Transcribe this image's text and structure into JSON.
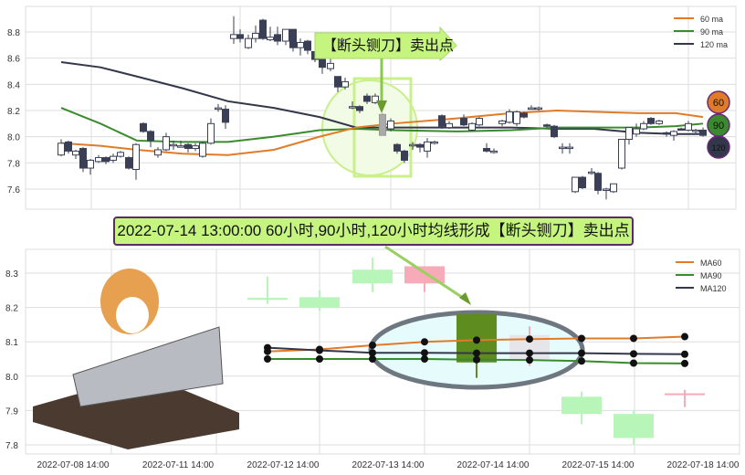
{
  "top_annotation": "【断头铡刀】卖出点",
  "signal_text": "2022-07-14 13:00:00 60小时,90小时,120小时均线形成【断头铡刀】卖出点",
  "badges": [
    "60",
    "90",
    "120"
  ],
  "colors": {
    "ma60": "#e07b2a",
    "ma90": "#3a8a2e",
    "ma120": "#33374a",
    "bull_hollow": "#ffffff",
    "bear_fill": "#3a3f55",
    "highlight": "#c5f57e",
    "bottom_up": "#b8f5b8",
    "bottom_down": "#f7aab8",
    "bottom_signal": "#5e8c1f"
  },
  "chart_data": [
    {
      "type": "candlestick",
      "legend": [
        "60 ma",
        "90 ma",
        "120 ma"
      ],
      "legend_position": "top-right",
      "grid": true,
      "yticks": [
        "8.8",
        "8.6",
        "8.4",
        "8.2",
        "8.0",
        "7.8",
        "7.6"
      ],
      "ylim": [
        7.55,
        8.97
      ],
      "candles_ohlc": [
        [
          7.86,
          7.98,
          7.85,
          7.95
        ],
        [
          7.96,
          7.97,
          7.87,
          7.89
        ],
        [
          7.86,
          7.9,
          7.83,
          7.89
        ],
        [
          7.91,
          7.92,
          7.73,
          7.76
        ],
        [
          7.76,
          7.83,
          7.71,
          7.82
        ],
        [
          7.81,
          7.86,
          7.8,
          7.84
        ],
        [
          7.84,
          7.85,
          7.79,
          7.81
        ],
        [
          7.82,
          7.87,
          7.8,
          7.85
        ],
        [
          7.85,
          7.89,
          7.84,
          7.88
        ],
        [
          7.84,
          7.85,
          7.75,
          7.76
        ],
        [
          7.75,
          7.95,
          7.67,
          7.94
        ],
        [
          8.1,
          8.11,
          8.03,
          8.04
        ],
        [
          8.04,
          8.05,
          7.92,
          7.97
        ],
        [
          7.86,
          7.92,
          7.84,
          7.9
        ],
        [
          7.9,
          8.03,
          7.89,
          8.0
        ],
        [
          7.94,
          7.97,
          7.9,
          7.94
        ],
        [
          7.93,
          7.97,
          7.92,
          7.93
        ],
        [
          7.94,
          7.95,
          7.88,
          7.91
        ],
        [
          7.91,
          7.95,
          7.89,
          7.93
        ],
        [
          7.85,
          7.96,
          7.84,
          7.95
        ],
        [
          7.95,
          8.14,
          7.94,
          8.1
        ],
        [
          8.22,
          8.25,
          8.19,
          8.22
        ],
        [
          8.21,
          8.24,
          8.06,
          8.11
        ],
        [
          8.75,
          8.92,
          8.71,
          8.78
        ],
        [
          8.78,
          8.82,
          8.72,
          8.75
        ],
        [
          8.68,
          8.78,
          8.67,
          8.75
        ],
        [
          8.75,
          8.85,
          8.72,
          8.79
        ],
        [
          8.89,
          8.9,
          8.74,
          8.75
        ],
        [
          8.74,
          8.84,
          8.73,
          8.76
        ],
        [
          8.78,
          8.84,
          8.7,
          8.73
        ],
        [
          8.73,
          8.82,
          8.7,
          8.82
        ],
        [
          8.82,
          8.82,
          8.65,
          8.68
        ],
        [
          8.68,
          8.75,
          8.62,
          8.72
        ],
        [
          8.73,
          8.74,
          8.63,
          8.66
        ],
        [
          8.65,
          8.67,
          8.57,
          8.59
        ],
        [
          8.59,
          8.6,
          8.48,
          8.53
        ],
        [
          8.52,
          8.6,
          8.5,
          8.56
        ],
        [
          8.46,
          8.46,
          8.34,
          8.38
        ],
        [
          8.38,
          8.45,
          8.36,
          8.42
        ],
        [
          8.23,
          8.27,
          8.21,
          8.23
        ],
        [
          8.23,
          8.24,
          8.18,
          8.2
        ],
        [
          8.31,
          8.33,
          8.25,
          8.27
        ],
        [
          8.26,
          8.33,
          8.25,
          8.31
        ],
        [
          8.17,
          8.18,
          8.01,
          8.01
        ],
        [
          8.06,
          8.14,
          8.04,
          8.12
        ],
        [
          7.94,
          7.95,
          7.87,
          7.89
        ],
        [
          7.89,
          7.9,
          7.8,
          7.82
        ],
        [
          7.94,
          7.96,
          7.9,
          7.94
        ],
        [
          7.94,
          7.95,
          7.88,
          7.92
        ],
        [
          7.89,
          7.99,
          7.84,
          7.96
        ],
        [
          7.95,
          7.97,
          7.94,
          7.96
        ],
        [
          8.16,
          8.17,
          8.06,
          8.08
        ],
        [
          8.07,
          8.12,
          8.06,
          8.1
        ],
        [
          8.14,
          8.17,
          8.08,
          8.09
        ],
        [
          8.05,
          8.11,
          8.04,
          8.1
        ],
        [
          8.09,
          8.15,
          8.08,
          8.14
        ],
        [
          7.91,
          7.95,
          7.88,
          7.89
        ],
        [
          7.89,
          7.91,
          7.87,
          7.89
        ],
        [
          8.1,
          8.13,
          8.08,
          8.12
        ],
        [
          8.11,
          8.21,
          8.1,
          8.19
        ],
        [
          8.1,
          8.2,
          8.08,
          8.19
        ],
        [
          8.18,
          8.19,
          8.14,
          8.15
        ],
        [
          8.22,
          8.24,
          8.21,
          8.22
        ],
        [
          8.22,
          8.23,
          8.2,
          8.22
        ],
        [
          8.09,
          8.1,
          8.07,
          8.08
        ],
        [
          8.08,
          8.09,
          7.99,
          8.0
        ],
        [
          7.92,
          7.95,
          7.87,
          7.92
        ],
        [
          7.92,
          7.95,
          7.87,
          7.92
        ],
        [
          7.58,
          7.69,
          7.57,
          7.69
        ],
        [
          7.69,
          7.7,
          7.6,
          7.61
        ],
        [
          7.73,
          7.76,
          7.71,
          7.73
        ],
        [
          7.72,
          7.73,
          7.56,
          7.59
        ],
        [
          7.6,
          7.61,
          7.52,
          7.6
        ],
        [
          7.58,
          7.64,
          7.57,
          7.64
        ],
        [
          7.76,
          7.98,
          7.75,
          7.98
        ],
        [
          7.98,
          8.07,
          7.94,
          8.07
        ],
        [
          8.02,
          8.1,
          8.0,
          8.06
        ],
        [
          8.06,
          8.12,
          8.05,
          8.1
        ],
        [
          8.14,
          8.15,
          8.09,
          8.1
        ],
        [
          8.1,
          8.13,
          8.09,
          8.12
        ],
        [
          8.03,
          8.04,
          8.0,
          8.02
        ],
        [
          8.01,
          8.05,
          7.97,
          8.04
        ],
        [
          8.06,
          8.07,
          8.05,
          8.05
        ],
        [
          8.05,
          8.12,
          8.04,
          8.1
        ],
        [
          8.05,
          8.06,
          8.02,
          8.05
        ],
        [
          8.05,
          8.07,
          8.0,
          8.01
        ]
      ],
      "ma60": [
        7.95,
        7.93,
        7.9,
        7.87,
        7.86,
        7.9,
        8.0,
        8.07,
        8.1,
        8.14,
        8.18,
        8.2,
        8.19,
        8.18,
        8.18,
        8.15
      ],
      "ma90": [
        8.22,
        8.1,
        7.97,
        7.96,
        7.96,
        8.0,
        8.05,
        8.06,
        8.05,
        8.04,
        8.05,
        8.07,
        8.07,
        8.07,
        8.08,
        8.1
      ],
      "ma120": [
        8.57,
        8.53,
        8.46,
        8.37,
        8.27,
        8.22,
        8.15,
        8.07,
        8.07,
        8.07,
        8.07,
        8.06,
        8.06,
        8.03,
        8.02,
        8.02
      ]
    },
    {
      "type": "candlestick",
      "legend": [
        "MA60",
        "MA90",
        "MA120"
      ],
      "legend_position": "top-right",
      "grid": true,
      "yticks": [
        "8.3",
        "8.2",
        "8.1",
        "8.0",
        "7.9",
        "7.8"
      ],
      "ylim": [
        7.77,
        8.37
      ],
      "xticks": [
        "2022-07-08 14:00",
        "2022-07-11 14:00",
        "2022-07-12 14:00",
        "2022-07-13 14:00",
        "2022-07-14 14:00",
        "2022-07-15 14:00",
        "2022-07-18 14:00"
      ],
      "candles_ohlc": [
        [
          8.222,
          8.29,
          8.21,
          8.228
        ],
        [
          8.2,
          8.25,
          8.19,
          8.23
        ],
        [
          8.27,
          8.345,
          8.245,
          8.31
        ],
        [
          8.32,
          8.32,
          8.245,
          8.27
        ],
        [
          8.18,
          8.185,
          7.995,
          8.04
        ],
        [
          8.12,
          8.145,
          8.03,
          8.05
        ],
        [
          7.89,
          7.955,
          7.86,
          7.94
        ],
        [
          7.89,
          7.9,
          7.8,
          7.82
        ],
        [
          7.95,
          7.96,
          7.91,
          7.95
        ]
      ],
      "ma60": [
        8.072,
        8.078,
        8.09,
        8.1,
        8.105,
        8.108,
        8.11,
        8.11,
        8.115
      ],
      "ma90": [
        8.05,
        8.05,
        8.05,
        8.05,
        8.048,
        8.047,
        8.044,
        8.038,
        8.037
      ],
      "ma120": [
        8.083,
        8.075,
        8.068,
        8.068,
        8.067,
        8.067,
        8.067,
        8.065,
        8.064
      ]
    }
  ]
}
